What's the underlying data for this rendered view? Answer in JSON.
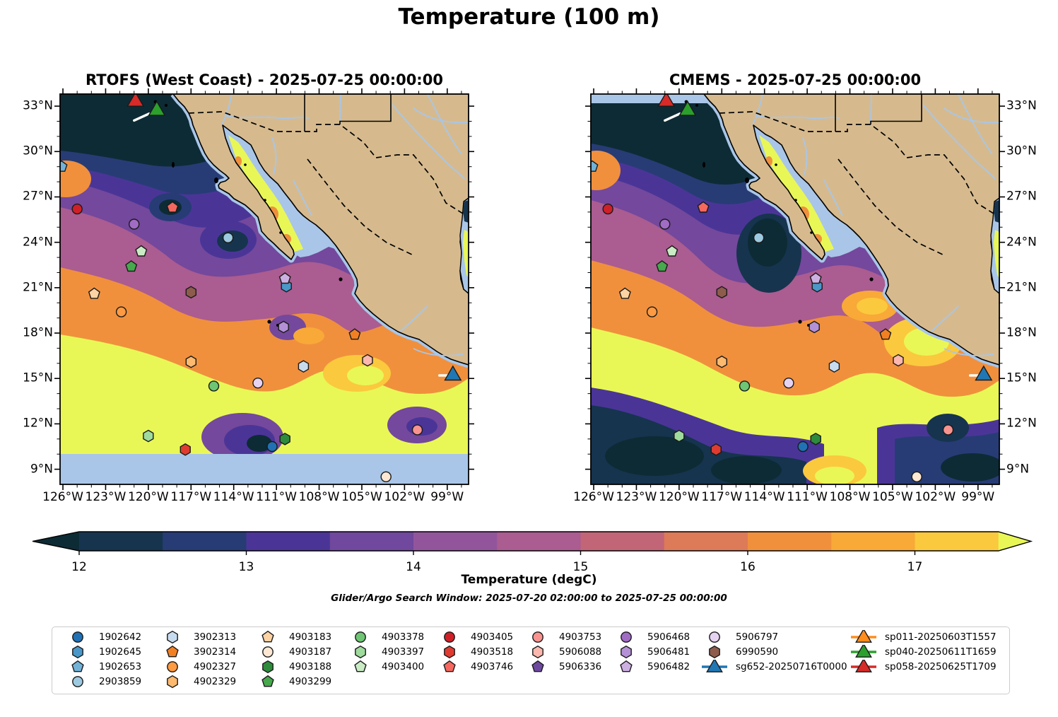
{
  "title": "Temperature (100 m)",
  "search_window_note": "Glider/Argo Search Window: 2025-07-20 02:00:00 to 2025-07-25 00:00:00",
  "chart_data": {
    "type": "heatmap",
    "variable": "Temperature at 100 m depth",
    "panels": [
      {
        "title": "RTOFS (West Coast) - 2025-07-25 00:00:00",
        "model": "RTOFS (West Coast)",
        "valid_time": "2025-07-25 00:00:00",
        "no_data_region": "light-blue band south of ~10°N (model domain edge)",
        "field_summary": "cold (<12 degC) pool offshore southern California reaching ~28N, purple/orange transition band toward SW, warm (>17.5 degC) yellow water over the SW quadrant and along the mainland coast, warm band inside Gulf of California"
      },
      {
        "title": "CMEMS - 2025-07-25 00:00:00",
        "model": "CMEMS",
        "valid_time": "2025-07-25 00:00:00",
        "no_data_region": "light-blue band north of ~33.2°N (model domain edge)",
        "field_summary": "larger cold (<12 degC) pools offshore California/Baja and across the south below ~13N, warm yellow core in west-central area and warm patches near the mainland coast, warm band inside Gulf of California"
      }
    ],
    "extent": {
      "lon": [
        -126.2,
        -97.5
      ],
      "lat": [
        8.0,
        33.8
      ]
    },
    "lon_tick_values": [
      -126,
      -123,
      -120,
      -117,
      -114,
      -111,
      -108,
      -105,
      -102,
      -99
    ],
    "lon_tick_labels": [
      "126°W",
      "123°W",
      "120°W",
      "117°W",
      "114°W",
      "111°W",
      "108°W",
      "105°W",
      "102°W",
      "99°W"
    ],
    "lat_tick_values": [
      33,
      30,
      27,
      24,
      21,
      18,
      15,
      12,
      9
    ],
    "lat_tick_labels": [
      "33°N",
      "30°N",
      "27°N",
      "24°N",
      "21°N",
      "18°N",
      "15°N",
      "12°N",
      "9°N"
    ],
    "colorbar": {
      "label": "Temperature (degC)",
      "tick_values": [
        12,
        13,
        14,
        15,
        16,
        17
      ],
      "tick_labels": [
        "12",
        "13",
        "14",
        "15",
        "16",
        "17"
      ],
      "range": [
        12.0,
        17.5
      ],
      "segment_step": 0.5,
      "segment_colors": [
        "#16344e",
        "#273c75",
        "#4a3597",
        "#70489d",
        "#92559c",
        "#ab5c90",
        "#c26677",
        "#dd7a57",
        "#f0903d",
        "#f8a938",
        "#fbc93d"
      ],
      "under_color": "#0d2b35",
      "over_color": "#e9f756",
      "extend": "both"
    },
    "platforms": [
      {
        "id": "1902642",
        "type": "argo",
        "shape": "circle",
        "color": "#2171b5",
        "lat": 10.5,
        "lon": -111.3,
        "on_map": true
      },
      {
        "id": "1902645",
        "type": "argo",
        "shape": "hexagon",
        "color": "#4a97c9",
        "lat": 21.1,
        "lon": -110.3,
        "on_map": true
      },
      {
        "id": "1902653",
        "type": "argo",
        "shape": "pentagon",
        "color": "#72b2d7",
        "lat": 29.0,
        "lon": -126.1,
        "on_map": true
      },
      {
        "id": "2903859",
        "type": "argo",
        "shape": "circle",
        "color": "#9ecae1",
        "lat": 24.3,
        "lon": -114.4,
        "on_map": true
      },
      {
        "id": "3902313",
        "type": "argo",
        "shape": "hexagon",
        "color": "#c8dcef",
        "lat": 15.8,
        "lon": -109.1,
        "on_map": true
      },
      {
        "id": "3902314",
        "type": "argo",
        "shape": "pentagon",
        "color": "#f28022",
        "lat": 17.9,
        "lon": -105.5,
        "on_map": true
      },
      {
        "id": "4902327",
        "type": "argo",
        "shape": "circle",
        "color": "#fd9a42",
        "lat": 19.4,
        "lon": -121.9,
        "on_map": true
      },
      {
        "id": "4902329",
        "type": "argo",
        "shape": "hexagon",
        "color": "#fdb96e",
        "lat": 16.1,
        "lon": -117.0,
        "on_map": true
      },
      {
        "id": "4903183",
        "type": "argo",
        "shape": "pentagon",
        "color": "#fdd3a4",
        "lat": 20.6,
        "lon": -123.8,
        "on_map": true
      },
      {
        "id": "4903187",
        "type": "argo",
        "shape": "circle",
        "color": "#fee8d3",
        "lat": 8.5,
        "lon": -103.3,
        "on_map": true
      },
      {
        "id": "4903188",
        "type": "argo",
        "shape": "hexagon",
        "color": "#2e8b3c",
        "lat": 11.0,
        "lon": -110.4,
        "on_map": true
      },
      {
        "id": "4903299",
        "type": "argo",
        "shape": "pentagon",
        "color": "#47a84d",
        "lat": 22.4,
        "lon": -121.2,
        "on_map": true
      },
      {
        "id": "4903378",
        "type": "argo",
        "shape": "circle",
        "color": "#6ec573",
        "lat": 14.5,
        "lon": -115.4,
        "on_map": true
      },
      {
        "id": "4903397",
        "type": "argo",
        "shape": "hexagon",
        "color": "#9fdb9c",
        "lat": 11.2,
        "lon": -120.0,
        "on_map": true
      },
      {
        "id": "4903400",
        "type": "argo",
        "shape": "pentagon",
        "color": "#c9ecc4",
        "lat": 23.4,
        "lon": -120.5,
        "on_map": true
      },
      {
        "id": "4903405",
        "type": "argo",
        "shape": "circle",
        "color": "#cf2028",
        "lat": 26.2,
        "lon": -125.0,
        "on_map": true
      },
      {
        "id": "4903518",
        "type": "argo",
        "shape": "hexagon",
        "color": "#e03b31",
        "lat": 10.3,
        "lon": -117.4,
        "on_map": true
      },
      {
        "id": "4903746",
        "type": "argo",
        "shape": "pentagon",
        "color": "#f4685f",
        "lat": 26.3,
        "lon": -118.3,
        "on_map": true
      },
      {
        "id": "4903753",
        "type": "argo",
        "shape": "circle",
        "color": "#f99390",
        "lat": 11.6,
        "lon": -101.1,
        "on_map": true
      },
      {
        "id": "5906088",
        "type": "argo",
        "shape": "hexagon",
        "color": "#fcb8ae",
        "lat": 16.2,
        "lon": -104.6,
        "on_map": true
      },
      {
        "id": "5906336",
        "type": "argo",
        "shape": "pentagon",
        "color": "#6d4aa0",
        "on_map": false
      },
      {
        "id": "5906468",
        "type": "argo",
        "shape": "circle",
        "color": "#a06cc4",
        "lat": 25.2,
        "lon": -121.0,
        "on_map": true
      },
      {
        "id": "5906481",
        "type": "argo",
        "shape": "hexagon",
        "color": "#b491d6",
        "lat": 18.4,
        "lon": -110.5,
        "on_map": true
      },
      {
        "id": "5906482",
        "type": "argo",
        "shape": "pentagon",
        "color": "#cdb0e2",
        "lat": 21.6,
        "lon": -110.4,
        "on_map": true
      },
      {
        "id": "5906797",
        "type": "argo",
        "shape": "circle",
        "color": "#e6d3f2",
        "lat": 14.7,
        "lon": -112.3,
        "on_map": true
      },
      {
        "id": "6990590",
        "type": "argo",
        "shape": "hexagon",
        "color": "#8d5c4c",
        "lat": 20.7,
        "lon": -117.0,
        "on_map": true
      },
      {
        "id": "sg652-20250716T0000",
        "type": "glider",
        "shape": "triangle",
        "color": "#2077b4",
        "lat": 15.2,
        "lon": -98.6,
        "on_map": true
      },
      {
        "id": "sp011-20250603T1557",
        "type": "glider",
        "shape": "triangle",
        "color": "#ff8c1c",
        "on_map": false
      },
      {
        "id": "sp040-20250611T1659",
        "type": "glider",
        "shape": "triangle",
        "color": "#2ca02c",
        "lat": 32.7,
        "lon": -119.4,
        "on_map": true
      },
      {
        "id": "sp058-20250625T1709",
        "type": "glider",
        "shape": "triangle",
        "color": "#d62b28",
        "lat": 33.3,
        "lon": -120.9,
        "on_map": true
      }
    ],
    "glider_tracks": [
      {
        "name": "track-near-sp040",
        "from": [
          -121.0,
          32.05
        ],
        "to": [
          -119.95,
          32.5
        ],
        "color": "#ffffff"
      },
      {
        "name": "track-near-sg652",
        "from": [
          -99.55,
          15.2
        ],
        "to": [
          -98.9,
          15.2
        ],
        "color": "#ffffff"
      }
    ],
    "legend_columns": [
      [
        "1902642",
        "1902645",
        "1902653",
        "2903859"
      ],
      [
        "3902313",
        "3902314",
        "4902327",
        "4902329"
      ],
      [
        "4903183",
        "4903187",
        "4903188",
        "4903299"
      ],
      [
        "4903378",
        "4903397",
        "4903400"
      ],
      [
        "4903405",
        "4903518",
        "4903746"
      ],
      [
        "4903753",
        "5906088",
        "5906336"
      ],
      [
        "5906468",
        "5906481",
        "5906482"
      ],
      [
        "5906797",
        "6990590",
        "sg652-20250716T0000"
      ],
      [
        "sp011-20250603T1557",
        "sp040-20250611T1659",
        "sp058-20250625T1709"
      ]
    ],
    "map_colors": {
      "land": "#d6ba8e",
      "coastline": "#000000",
      "shallow_no_data": "#a9c6e8",
      "rivers": "#a9c6e8",
      "borders": "#000000"
    }
  }
}
